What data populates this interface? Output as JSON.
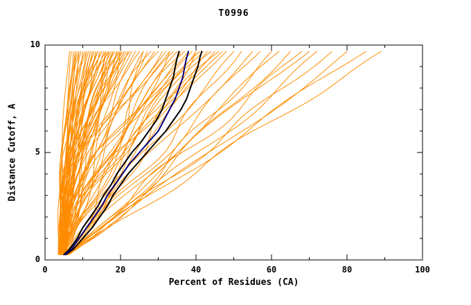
{
  "window": {
    "title": "T0996"
  },
  "chart_data": {
    "type": "line",
    "title": "T0996",
    "xlabel": "Percent of Residues (CA)",
    "ylabel": "Distance Cutoff, A",
    "xlim": [
      0,
      100
    ],
    "ylim": [
      0,
      10
    ],
    "xticks_major": [
      0,
      20,
      40,
      60,
      80,
      100
    ],
    "xticks_minor": [
      10,
      30,
      50,
      70,
      90
    ],
    "yticks_major": [
      0,
      5,
      10
    ],
    "yticks_minor": [
      1,
      2,
      3,
      4,
      6,
      7,
      8,
      9
    ],
    "grid": false,
    "legend": "none",
    "background": "#ffffff",
    "colors": {
      "model_curves": "#ff8c00",
      "reference_curves": "#000000",
      "highlight_curve": "#000080",
      "axis": "#000000"
    },
    "y_start": 0.25,
    "y_end": 9.7,
    "orange_curve_format": "[x_at_bottom, x_at_top, shape_exponent, wiggle_amplitude]",
    "orange_curves": [
      [
        3.5,
        6.5,
        1.6,
        0.4
      ],
      [
        3.8,
        7.0,
        2.0,
        0.5
      ],
      [
        4.0,
        7.5,
        1.3,
        0.6
      ],
      [
        4.2,
        8.0,
        2.4,
        0.5
      ],
      [
        3.6,
        8.5,
        1.8,
        0.7
      ],
      [
        4.5,
        9.0,
        1.2,
        0.5
      ],
      [
        4.8,
        9.5,
        2.2,
        0.8
      ],
      [
        3.9,
        10.0,
        1.5,
        0.6
      ],
      [
        4.1,
        10.5,
        2.6,
        0.7
      ],
      [
        4.4,
        11.0,
        1.4,
        0.9
      ],
      [
        4.7,
        11.5,
        1.9,
        0.6
      ],
      [
        5.0,
        12.0,
        2.3,
        0.8
      ],
      [
        3.7,
        12.5,
        1.6,
        1.0
      ],
      [
        4.3,
        13.0,
        2.0,
        0.7
      ],
      [
        4.6,
        13.5,
        1.3,
        0.9
      ],
      [
        4.9,
        14.0,
        2.5,
        0.8
      ],
      [
        5.2,
        14.5,
        1.7,
        1.1
      ],
      [
        4.0,
        15.0,
        2.1,
        0.9
      ],
      [
        4.5,
        15.5,
        1.5,
        1.0
      ],
      [
        5.0,
        16.0,
        2.4,
        0.8
      ],
      [
        4.2,
        16.5,
        1.8,
        1.2
      ],
      [
        4.8,
        17.0,
        1.4,
        1.0
      ],
      [
        5.3,
        17.5,
        2.2,
        0.9
      ],
      [
        4.4,
        18.0,
        1.6,
        1.3
      ],
      [
        4.9,
        18.5,
        2.0,
        1.0
      ],
      [
        5.5,
        19.0,
        1.3,
        1.2
      ],
      [
        4.6,
        19.5,
        2.3,
        1.1
      ],
      [
        5.1,
        20.0,
        1.7,
        1.3
      ],
      [
        4.3,
        20.5,
        1.5,
        1.1
      ],
      [
        5.6,
        21.0,
        2.1,
        1.2
      ],
      [
        4.7,
        21.5,
        1.9,
        1.4
      ],
      [
        5.2,
        22.0,
        1.4,
        1.2
      ],
      [
        4.5,
        9.0,
        3.0,
        0.5
      ],
      [
        4.0,
        11.0,
        2.8,
        0.6
      ],
      [
        5.4,
        13.0,
        2.9,
        0.7
      ],
      [
        4.8,
        15.0,
        2.7,
        0.8
      ],
      [
        5.0,
        8.0,
        1.1,
        0.4
      ],
      [
        4.2,
        12.0,
        1.1,
        0.8
      ],
      [
        5.5,
        16.0,
        1.1,
        1.0
      ],
      [
        4.6,
        18.0,
        1.2,
        1.1
      ],
      [
        3.9,
        14.0,
        2.2,
        0.9
      ],
      [
        5.8,
        20.0,
        2.6,
        1.0
      ],
      [
        4.1,
        17.0,
        2.8,
        0.9
      ],
      [
        5.3,
        19.0,
        1.2,
        1.3
      ],
      [
        4.7,
        22.5,
        2.5,
        1.2
      ],
      [
        4.5,
        23,
        1.8,
        1.2
      ],
      [
        5.0,
        24,
        1.3,
        1.4
      ],
      [
        4.2,
        25,
        2.0,
        1.3
      ],
      [
        5.5,
        26,
        1.5,
        1.5
      ],
      [
        4.8,
        27,
        1.1,
        1.3
      ],
      [
        4.4,
        28,
        1.9,
        1.6
      ],
      [
        5.2,
        29,
        1.4,
        1.4
      ],
      [
        4.6,
        30,
        2.1,
        1.5
      ],
      [
        5.7,
        31,
        1.2,
        1.7
      ],
      [
        4.3,
        32,
        1.7,
        1.5
      ],
      [
        5.1,
        33,
        1.3,
        1.8
      ],
      [
        4.9,
        34,
        2.0,
        1.6
      ],
      [
        5.4,
        35,
        1.5,
        1.8
      ],
      [
        4.5,
        36,
        1.1,
        1.6
      ],
      [
        5.8,
        37,
        1.8,
        1.9
      ],
      [
        4.7,
        38,
        1.3,
        1.7
      ],
      [
        5.3,
        39,
        1.6,
        2.0
      ],
      [
        4.4,
        40,
        1.2,
        1.8
      ],
      [
        5.6,
        41,
        1.9,
        1.9
      ],
      [
        4.8,
        42,
        1.4,
        2.0
      ],
      [
        5.0,
        43,
        1.1,
        1.8
      ],
      [
        5.9,
        44,
        1.7,
        2.1
      ],
      [
        4.6,
        45,
        1.3,
        1.9
      ],
      [
        5.2,
        46,
        1.5,
        2.0
      ],
      [
        5.5,
        48,
        1.2,
        2.1
      ],
      [
        5.0,
        50,
        1.05,
        1.8
      ],
      [
        5.5,
        52,
        0.95,
        2.0
      ],
      [
        6.0,
        55,
        1.1,
        2.0
      ],
      [
        5.2,
        57,
        1.0,
        2.2
      ],
      [
        5.8,
        60,
        0.9,
        2.0
      ],
      [
        5.4,
        62,
        1.05,
        2.3
      ],
      [
        6.2,
        65,
        0.95,
        2.1
      ],
      [
        5.6,
        68,
        1.0,
        2.4
      ],
      [
        6.0,
        70,
        1.1,
        2.2
      ],
      [
        5.3,
        72,
        0.9,
        2.3
      ],
      [
        6.4,
        76,
        1.0,
        2.0
      ],
      [
        5.7,
        80,
        0.95,
        2.2
      ],
      [
        6.1,
        85,
        1.05,
        2.1
      ],
      [
        5.9,
        89,
        1.0,
        2.0
      ],
      [
        5.5,
        47,
        1.25,
        2.0
      ],
      [
        4.5,
        20,
        0.7,
        1.0
      ],
      [
        5.0,
        26,
        0.65,
        1.2
      ],
      [
        5.5,
        33,
        0.75,
        1.4
      ],
      [
        4.8,
        16,
        0.6,
        0.8
      ],
      [
        5.2,
        40,
        0.8,
        1.6
      ]
    ],
    "black_curves": [
      [
        [
          5,
          0.25
        ],
        [
          6.5,
          0.5
        ],
        [
          8.5,
          1
        ],
        [
          10,
          1.5
        ],
        [
          12,
          2
        ],
        [
          14,
          2.5
        ],
        [
          15.5,
          3
        ],
        [
          17.5,
          3.5
        ],
        [
          19,
          4
        ],
        [
          21,
          4.5
        ],
        [
          23,
          5
        ],
        [
          25.5,
          5.5
        ],
        [
          27.5,
          6
        ],
        [
          29.5,
          6.5
        ],
        [
          31,
          7
        ],
        [
          32,
          7.5
        ],
        [
          33,
          8
        ],
        [
          34,
          8.5
        ],
        [
          34.5,
          9
        ],
        [
          35,
          9.4
        ],
        [
          35.5,
          9.7
        ]
      ],
      [
        [
          5.5,
          0.25
        ],
        [
          7.5,
          0.5
        ],
        [
          10,
          1
        ],
        [
          12.5,
          1.5
        ],
        [
          14.5,
          2
        ],
        [
          16.5,
          2.5
        ],
        [
          18,
          3
        ],
        [
          20,
          3.5
        ],
        [
          22,
          4
        ],
        [
          24.5,
          4.5
        ],
        [
          27,
          5
        ],
        [
          29.5,
          5.5
        ],
        [
          32,
          6
        ],
        [
          34,
          6.5
        ],
        [
          36,
          7
        ],
        [
          37.5,
          7.5
        ],
        [
          38.5,
          8
        ],
        [
          39.5,
          8.5
        ],
        [
          40.5,
          9
        ],
        [
          41,
          9.4
        ],
        [
          41.5,
          9.7
        ]
      ]
    ],
    "blue_curves": [
      [
        [
          5.2,
          0.25
        ],
        [
          7,
          0.5
        ],
        [
          9,
          1
        ],
        [
          11,
          1.5
        ],
        [
          13,
          2
        ],
        [
          15,
          2.5
        ],
        [
          16.5,
          3
        ],
        [
          18.5,
          3.5
        ],
        [
          20.5,
          4
        ],
        [
          22.5,
          4.5
        ],
        [
          25,
          5
        ],
        [
          27.5,
          5.5
        ],
        [
          30,
          6
        ],
        [
          31.5,
          6.5
        ],
        [
          33,
          7
        ],
        [
          34.5,
          7.5
        ],
        [
          35.5,
          8
        ],
        [
          36.5,
          8.5
        ],
        [
          37,
          9
        ],
        [
          37.5,
          9.4
        ],
        [
          38,
          9.7
        ]
      ]
    ]
  }
}
